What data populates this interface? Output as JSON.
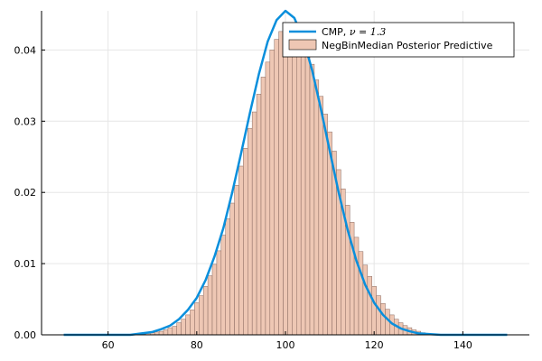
{
  "chart_data": {
    "type": "bar",
    "title": "",
    "xlabel": "",
    "ylabel": "",
    "xlim": [
      45,
      155
    ],
    "ylim": [
      0,
      0.0455
    ],
    "x_ticks": [
      60,
      80,
      100,
      120,
      140
    ],
    "y_ticks": [
      0.0,
      0.01,
      0.02,
      0.03,
      0.04
    ],
    "x_tick_labels": [
      "60",
      "80",
      "100",
      "120",
      "140"
    ],
    "y_tick_labels": [
      "0.00",
      "0.01",
      "0.02",
      "0.03",
      "0.04"
    ],
    "grid": true,
    "legend_position": "top-right",
    "colors": {
      "line": "#0a8fdc",
      "bars": "#eec7b4"
    },
    "series": [
      {
        "name": "CMP, ν = 1.3",
        "legend_prefix": "CMP, ",
        "legend_math": "ν = 1.3",
        "type": "line",
        "x": [
          50,
          55,
          60,
          65,
          70,
          72,
          74,
          76,
          78,
          80,
          82,
          84,
          86,
          88,
          90,
          92,
          94,
          96,
          98,
          100,
          102,
          104,
          106,
          108,
          110,
          112,
          114,
          116,
          118,
          120,
          122,
          124,
          126,
          128,
          130,
          135,
          140,
          145,
          150
        ],
        "y": [
          0.0,
          0.0,
          0.0,
          0.0,
          0.0004,
          0.0008,
          0.0013,
          0.0022,
          0.0035,
          0.0052,
          0.0077,
          0.011,
          0.015,
          0.02,
          0.0255,
          0.0312,
          0.0366,
          0.0412,
          0.0442,
          0.0455,
          0.0445,
          0.0416,
          0.0372,
          0.0317,
          0.0258,
          0.02,
          0.0148,
          0.0104,
          0.007,
          0.0045,
          0.0028,
          0.0016,
          0.0009,
          0.0005,
          0.0002,
          0.0,
          0.0,
          0.0,
          0.0
        ]
      },
      {
        "name": "NegBinMedian Posterior Predictive",
        "type": "histogram",
        "bin_width": 1,
        "x": [
          68,
          69,
          70,
          71,
          72,
          73,
          74,
          75,
          76,
          77,
          78,
          79,
          80,
          81,
          82,
          83,
          84,
          85,
          86,
          87,
          88,
          89,
          90,
          91,
          92,
          93,
          94,
          95,
          96,
          97,
          98,
          99,
          100,
          101,
          102,
          103,
          104,
          105,
          106,
          107,
          108,
          109,
          110,
          111,
          112,
          113,
          114,
          115,
          116,
          117,
          118,
          119,
          120,
          121,
          122,
          123,
          124,
          125,
          126,
          127,
          128,
          129,
          130,
          131,
          132
        ],
        "y": [
          0.0001,
          0.0002,
          0.0003,
          0.0004,
          0.0005,
          0.0007,
          0.001,
          0.0012,
          0.0017,
          0.0022,
          0.0028,
          0.0035,
          0.0045,
          0.0055,
          0.0068,
          0.0083,
          0.0099,
          0.0118,
          0.014,
          0.0163,
          0.0185,
          0.021,
          0.0237,
          0.0262,
          0.029,
          0.0313,
          0.0338,
          0.0362,
          0.0383,
          0.04,
          0.0415,
          0.0426,
          0.0432,
          0.0435,
          0.0433,
          0.0425,
          0.0413,
          0.0398,
          0.038,
          0.0358,
          0.0335,
          0.031,
          0.0285,
          0.0258,
          0.0232,
          0.0205,
          0.0182,
          0.0158,
          0.0137,
          0.0117,
          0.0098,
          0.0082,
          0.0068,
          0.0055,
          0.0044,
          0.0036,
          0.0028,
          0.0022,
          0.0017,
          0.0013,
          0.001,
          0.0007,
          0.0005,
          0.0003,
          0.0002
        ]
      }
    ]
  }
}
